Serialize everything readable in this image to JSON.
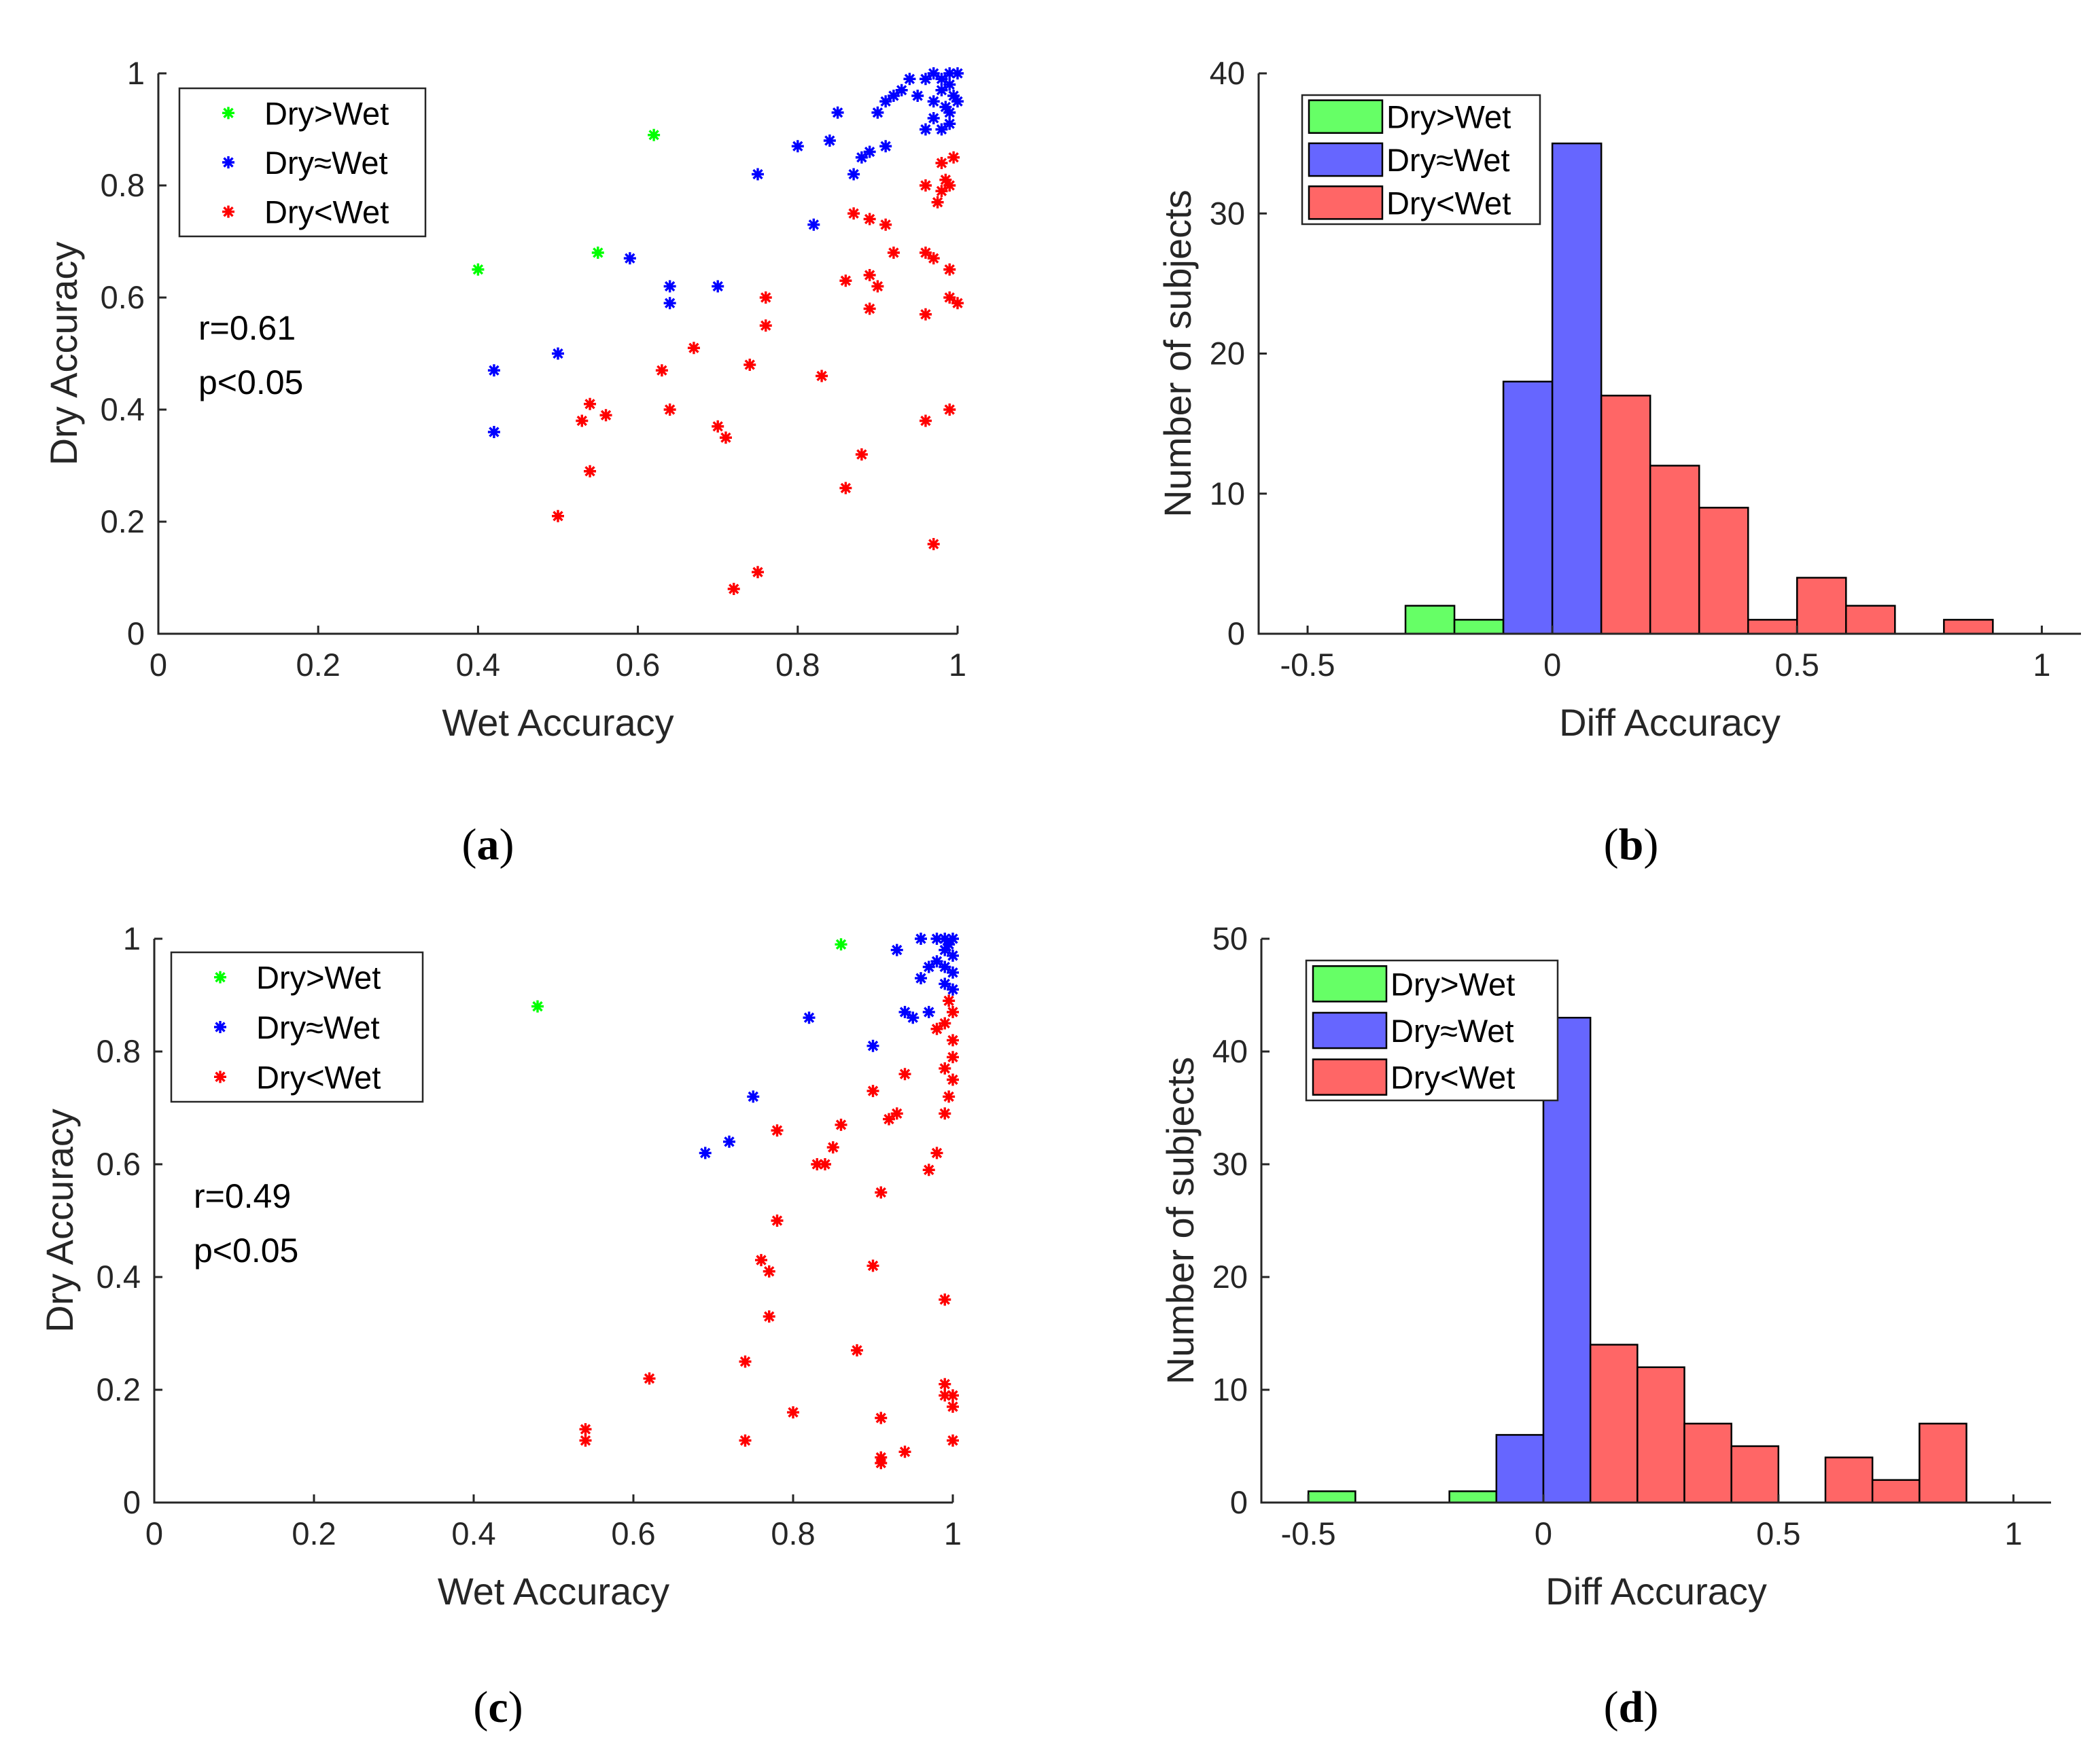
{
  "colors": {
    "scatter_green": "#00ff00",
    "scatter_blue": "#0000ff",
    "scatter_red": "#ff0000",
    "hist_green": "#66ff66",
    "hist_blue": "#6666ff",
    "hist_red": "#ff6666"
  },
  "chart_data": [
    {
      "id": "a",
      "type": "scatter",
      "panel_label": "(a)",
      "xlabel": "Wet Accuracy",
      "ylabel": "Dry Accuracy",
      "xlim": [
        0,
        1
      ],
      "ylim": [
        0,
        1
      ],
      "xticks": [
        0,
        0.2,
        0.4,
        0.6,
        0.8,
        1
      ],
      "yticks": [
        0,
        0.2,
        0.4,
        0.6,
        0.8,
        1
      ],
      "xtick_labels": [
        "0",
        "0.2",
        "0.4",
        "0.6",
        "0.8",
        "1"
      ],
      "ytick_labels": [
        "0",
        "0.2",
        "0.4",
        "0.6",
        "0.8",
        "1"
      ],
      "legend": [
        "Dry>Wet",
        "Dry≈Wet",
        "Dry<Wet"
      ],
      "legend_position": "top-left",
      "stat_r": "r=0.61",
      "stat_p": "p<0.05",
      "series": [
        {
          "name": "Dry>Wet",
          "color": "scatter_green",
          "points": [
            [
              0.62,
              0.89
            ],
            [
              0.4,
              0.65
            ],
            [
              0.55,
              0.68
            ]
          ]
        },
        {
          "name": "Dry≈Wet",
          "color": "scatter_blue",
          "points": [
            [
              0.94,
              0.99
            ],
            [
              0.96,
              0.99
            ],
            [
              0.97,
              1.0
            ],
            [
              0.98,
              0.99
            ],
            [
              0.99,
              1.0
            ],
            [
              1.0,
              1.0
            ],
            [
              0.99,
              0.98
            ],
            [
              0.995,
              0.96
            ],
            [
              0.98,
              0.97
            ],
            [
              0.985,
              0.94
            ],
            [
              1.0,
              0.95
            ],
            [
              0.99,
              0.93
            ],
            [
              0.97,
              0.95
            ],
            [
              0.95,
              0.96
            ],
            [
              0.93,
              0.97
            ],
            [
              0.92,
              0.96
            ],
            [
              0.91,
              0.95
            ],
            [
              0.9,
              0.93
            ],
            [
              0.85,
              0.93
            ],
            [
              0.99,
              0.91
            ],
            [
              0.98,
              0.9
            ],
            [
              0.96,
              0.9
            ],
            [
              0.97,
              0.92
            ],
            [
              0.91,
              0.87
            ],
            [
              0.89,
              0.86
            ],
            [
              0.88,
              0.85
            ],
            [
              0.84,
              0.88
            ],
            [
              0.8,
              0.87
            ],
            [
              0.87,
              0.82
            ],
            [
              0.75,
              0.82
            ],
            [
              0.82,
              0.73
            ],
            [
              0.59,
              0.67
            ],
            [
              0.64,
              0.62
            ],
            [
              0.7,
              0.62
            ],
            [
              0.64,
              0.59
            ],
            [
              0.5,
              0.5
            ],
            [
              0.42,
              0.47
            ],
            [
              0.42,
              0.36
            ]
          ]
        },
        {
          "name": "Dry<Wet",
          "color": "scatter_red",
          "points": [
            [
              0.995,
              0.85
            ],
            [
              0.98,
              0.84
            ],
            [
              0.985,
              0.81
            ],
            [
              0.98,
              0.79
            ],
            [
              0.99,
              0.8
            ],
            [
              0.96,
              0.8
            ],
            [
              0.975,
              0.77
            ],
            [
              0.87,
              0.75
            ],
            [
              0.91,
              0.73
            ],
            [
              0.89,
              0.74
            ],
            [
              0.92,
              0.68
            ],
            [
              0.96,
              0.68
            ],
            [
              0.97,
              0.67
            ],
            [
              0.99,
              0.65
            ],
            [
              0.86,
              0.63
            ],
            [
              0.89,
              0.64
            ],
            [
              0.9,
              0.62
            ],
            [
              0.89,
              0.58
            ],
            [
              0.96,
              0.57
            ],
            [
              0.99,
              0.6
            ],
            [
              1.0,
              0.59
            ],
            [
              0.76,
              0.6
            ],
            [
              0.76,
              0.55
            ],
            [
              0.67,
              0.51
            ],
            [
              0.63,
              0.47
            ],
            [
              0.74,
              0.48
            ],
            [
              0.83,
              0.46
            ],
            [
              0.54,
              0.41
            ],
            [
              0.56,
              0.39
            ],
            [
              0.53,
              0.38
            ],
            [
              0.64,
              0.4
            ],
            [
              0.7,
              0.37
            ],
            [
              0.71,
              0.35
            ],
            [
              0.96,
              0.38
            ],
            [
              0.99,
              0.4
            ],
            [
              0.88,
              0.32
            ],
            [
              0.54,
              0.29
            ],
            [
              0.86,
              0.26
            ],
            [
              0.5,
              0.21
            ],
            [
              0.75,
              0.11
            ],
            [
              0.72,
              0.08
            ],
            [
              0.97,
              0.16
            ]
          ]
        }
      ]
    },
    {
      "id": "b",
      "type": "bar",
      "panel_label": "(b)",
      "xlabel": "Diff Accuracy",
      "ylabel": "Number of subjects",
      "xlim": [
        -0.6,
        1.08
      ],
      "ylim": [
        0,
        40
      ],
      "xticks": [
        -0.5,
        0,
        0.5,
        1
      ],
      "yticks": [
        0,
        10,
        20,
        30,
        40
      ],
      "xtick_labels": [
        "-0.5",
        "0",
        "0.5",
        "1"
      ],
      "ytick_labels": [
        "0",
        "10",
        "20",
        "30",
        "40"
      ],
      "legend": [
        "Dry>Wet",
        "Dry≈Wet",
        "Dry<Wet"
      ],
      "legend_position": "top-left",
      "bin_width": 0.1,
      "series": [
        {
          "name": "Dry>Wet",
          "color": "hist_green",
          "bins": [
            [
              -0.3,
              2
            ],
            [
              -0.2,
              1
            ]
          ]
        },
        {
          "name": "Dry≈Wet",
          "color": "hist_blue",
          "bins": [
            [
              -0.1,
              18
            ],
            [
              0.0,
              35
            ]
          ]
        },
        {
          "name": "Dry<Wet",
          "color": "hist_red",
          "bins": [
            [
              0.1,
              17
            ],
            [
              0.2,
              12
            ],
            [
              0.3,
              9
            ],
            [
              0.4,
              1
            ],
            [
              0.5,
              4
            ],
            [
              0.6,
              2
            ],
            [
              0.8,
              1
            ]
          ]
        }
      ]
    },
    {
      "id": "c",
      "type": "scatter",
      "panel_label": "(c)",
      "xlabel": "Wet Accuracy",
      "ylabel": "Dry Accuracy",
      "xlim": [
        0,
        1
      ],
      "ylim": [
        0,
        1
      ],
      "xticks": [
        0,
        0.2,
        0.4,
        0.6,
        0.8,
        1
      ],
      "yticks": [
        0,
        0.2,
        0.4,
        0.6,
        0.8,
        1
      ],
      "xtick_labels": [
        "0",
        "0.2",
        "0.4",
        "0.6",
        "0.8",
        "1"
      ],
      "ytick_labels": [
        "0",
        "0.2",
        "0.4",
        "0.6",
        "0.8",
        "1"
      ],
      "legend": [
        "Dry>Wet",
        "Dry≈Wet",
        "Dry<Wet"
      ],
      "legend_position": "top-left",
      "stat_r": "r=0.49",
      "stat_p": "p<0.05",
      "series": [
        {
          "name": "Dry>Wet",
          "color": "scatter_green",
          "points": [
            [
              0.86,
              0.99
            ],
            [
              0.48,
              0.88
            ]
          ]
        },
        {
          "name": "Dry≈Wet",
          "color": "scatter_blue",
          "points": [
            [
              0.96,
              1.0
            ],
            [
              0.98,
              1.0
            ],
            [
              0.99,
              1.0
            ],
            [
              1.0,
              1.0
            ],
            [
              0.995,
              0.99
            ],
            [
              0.99,
              0.98
            ],
            [
              1.0,
              0.97
            ],
            [
              0.98,
              0.96
            ],
            [
              0.99,
              0.95
            ],
            [
              1.0,
              0.94
            ],
            [
              0.97,
              0.95
            ],
            [
              0.96,
              0.93
            ],
            [
              0.99,
              0.92
            ],
            [
              1.0,
              0.91
            ],
            [
              0.93,
              0.98
            ],
            [
              0.94,
              0.87
            ],
            [
              0.95,
              0.86
            ],
            [
              0.97,
              0.87
            ],
            [
              0.82,
              0.86
            ],
            [
              0.9,
              0.81
            ],
            [
              0.75,
              0.72
            ],
            [
              0.72,
              0.64
            ],
            [
              0.69,
              0.62
            ]
          ]
        },
        {
          "name": "Dry<Wet",
          "color": "scatter_red",
          "points": [
            [
              0.995,
              0.89
            ],
            [
              1.0,
              0.87
            ],
            [
              0.99,
              0.85
            ],
            [
              0.98,
              0.84
            ],
            [
              1.0,
              0.82
            ],
            [
              0.99,
              0.77
            ],
            [
              1.0,
              0.75
            ],
            [
              0.995,
              0.72
            ],
            [
              1.0,
              0.79
            ],
            [
              0.94,
              0.76
            ],
            [
              0.9,
              0.73
            ],
            [
              0.99,
              0.69
            ],
            [
              0.93,
              0.69
            ],
            [
              0.92,
              0.68
            ],
            [
              0.86,
              0.67
            ],
            [
              0.85,
              0.63
            ],
            [
              0.78,
              0.66
            ],
            [
              0.83,
              0.6
            ],
            [
              0.84,
              0.6
            ],
            [
              0.98,
              0.62
            ],
            [
              0.97,
              0.59
            ],
            [
              0.91,
              0.55
            ],
            [
              0.78,
              0.5
            ],
            [
              0.76,
              0.43
            ],
            [
              0.77,
              0.41
            ],
            [
              0.9,
              0.42
            ],
            [
              0.77,
              0.33
            ],
            [
              0.99,
              0.36
            ],
            [
              0.88,
              0.27
            ],
            [
              0.74,
              0.25
            ],
            [
              0.62,
              0.22
            ],
            [
              0.99,
              0.21
            ],
            [
              1.0,
              0.19
            ],
            [
              0.99,
              0.19
            ],
            [
              1.0,
              0.17
            ],
            [
              0.8,
              0.16
            ],
            [
              0.91,
              0.15
            ],
            [
              0.54,
              0.13
            ],
            [
              0.54,
              0.11
            ],
            [
              0.74,
              0.11
            ],
            [
              1.0,
              0.11
            ],
            [
              0.94,
              0.09
            ],
            [
              0.91,
              0.08
            ],
            [
              0.91,
              0.07
            ]
          ]
        }
      ]
    },
    {
      "id": "d",
      "type": "bar",
      "panel_label": "(d)",
      "xlabel": "Diff Accuracy",
      "ylabel": "Number of subjects",
      "xlim": [
        -0.6,
        1.08
      ],
      "ylim": [
        0,
        50
      ],
      "xticks": [
        -0.5,
        0,
        0.5,
        1
      ],
      "yticks": [
        0,
        10,
        20,
        30,
        40,
        50
      ],
      "xtick_labels": [
        "-0.5",
        "0",
        "0.5",
        "1"
      ],
      "ytick_labels": [
        "0",
        "10",
        "20",
        "30",
        "40",
        "50"
      ],
      "legend": [
        "Dry>Wet",
        "Dry≈Wet",
        "Dry<Wet"
      ],
      "legend_position": "top-left",
      "bin_width": 0.1,
      "series": [
        {
          "name": "Dry>Wet",
          "color": "hist_green",
          "bins": [
            [
              -0.5,
              1
            ],
            [
              -0.2,
              1
            ]
          ]
        },
        {
          "name": "Dry≈Wet",
          "color": "hist_blue",
          "bins": [
            [
              -0.1,
              6
            ],
            [
              0.0,
              43
            ]
          ]
        },
        {
          "name": "Dry<Wet",
          "color": "hist_red",
          "bins": [
            [
              0.1,
              14
            ],
            [
              0.2,
              12
            ],
            [
              0.3,
              7
            ],
            [
              0.4,
              5
            ],
            [
              0.6,
              4
            ],
            [
              0.7,
              2
            ],
            [
              0.8,
              7
            ]
          ]
        }
      ]
    }
  ]
}
